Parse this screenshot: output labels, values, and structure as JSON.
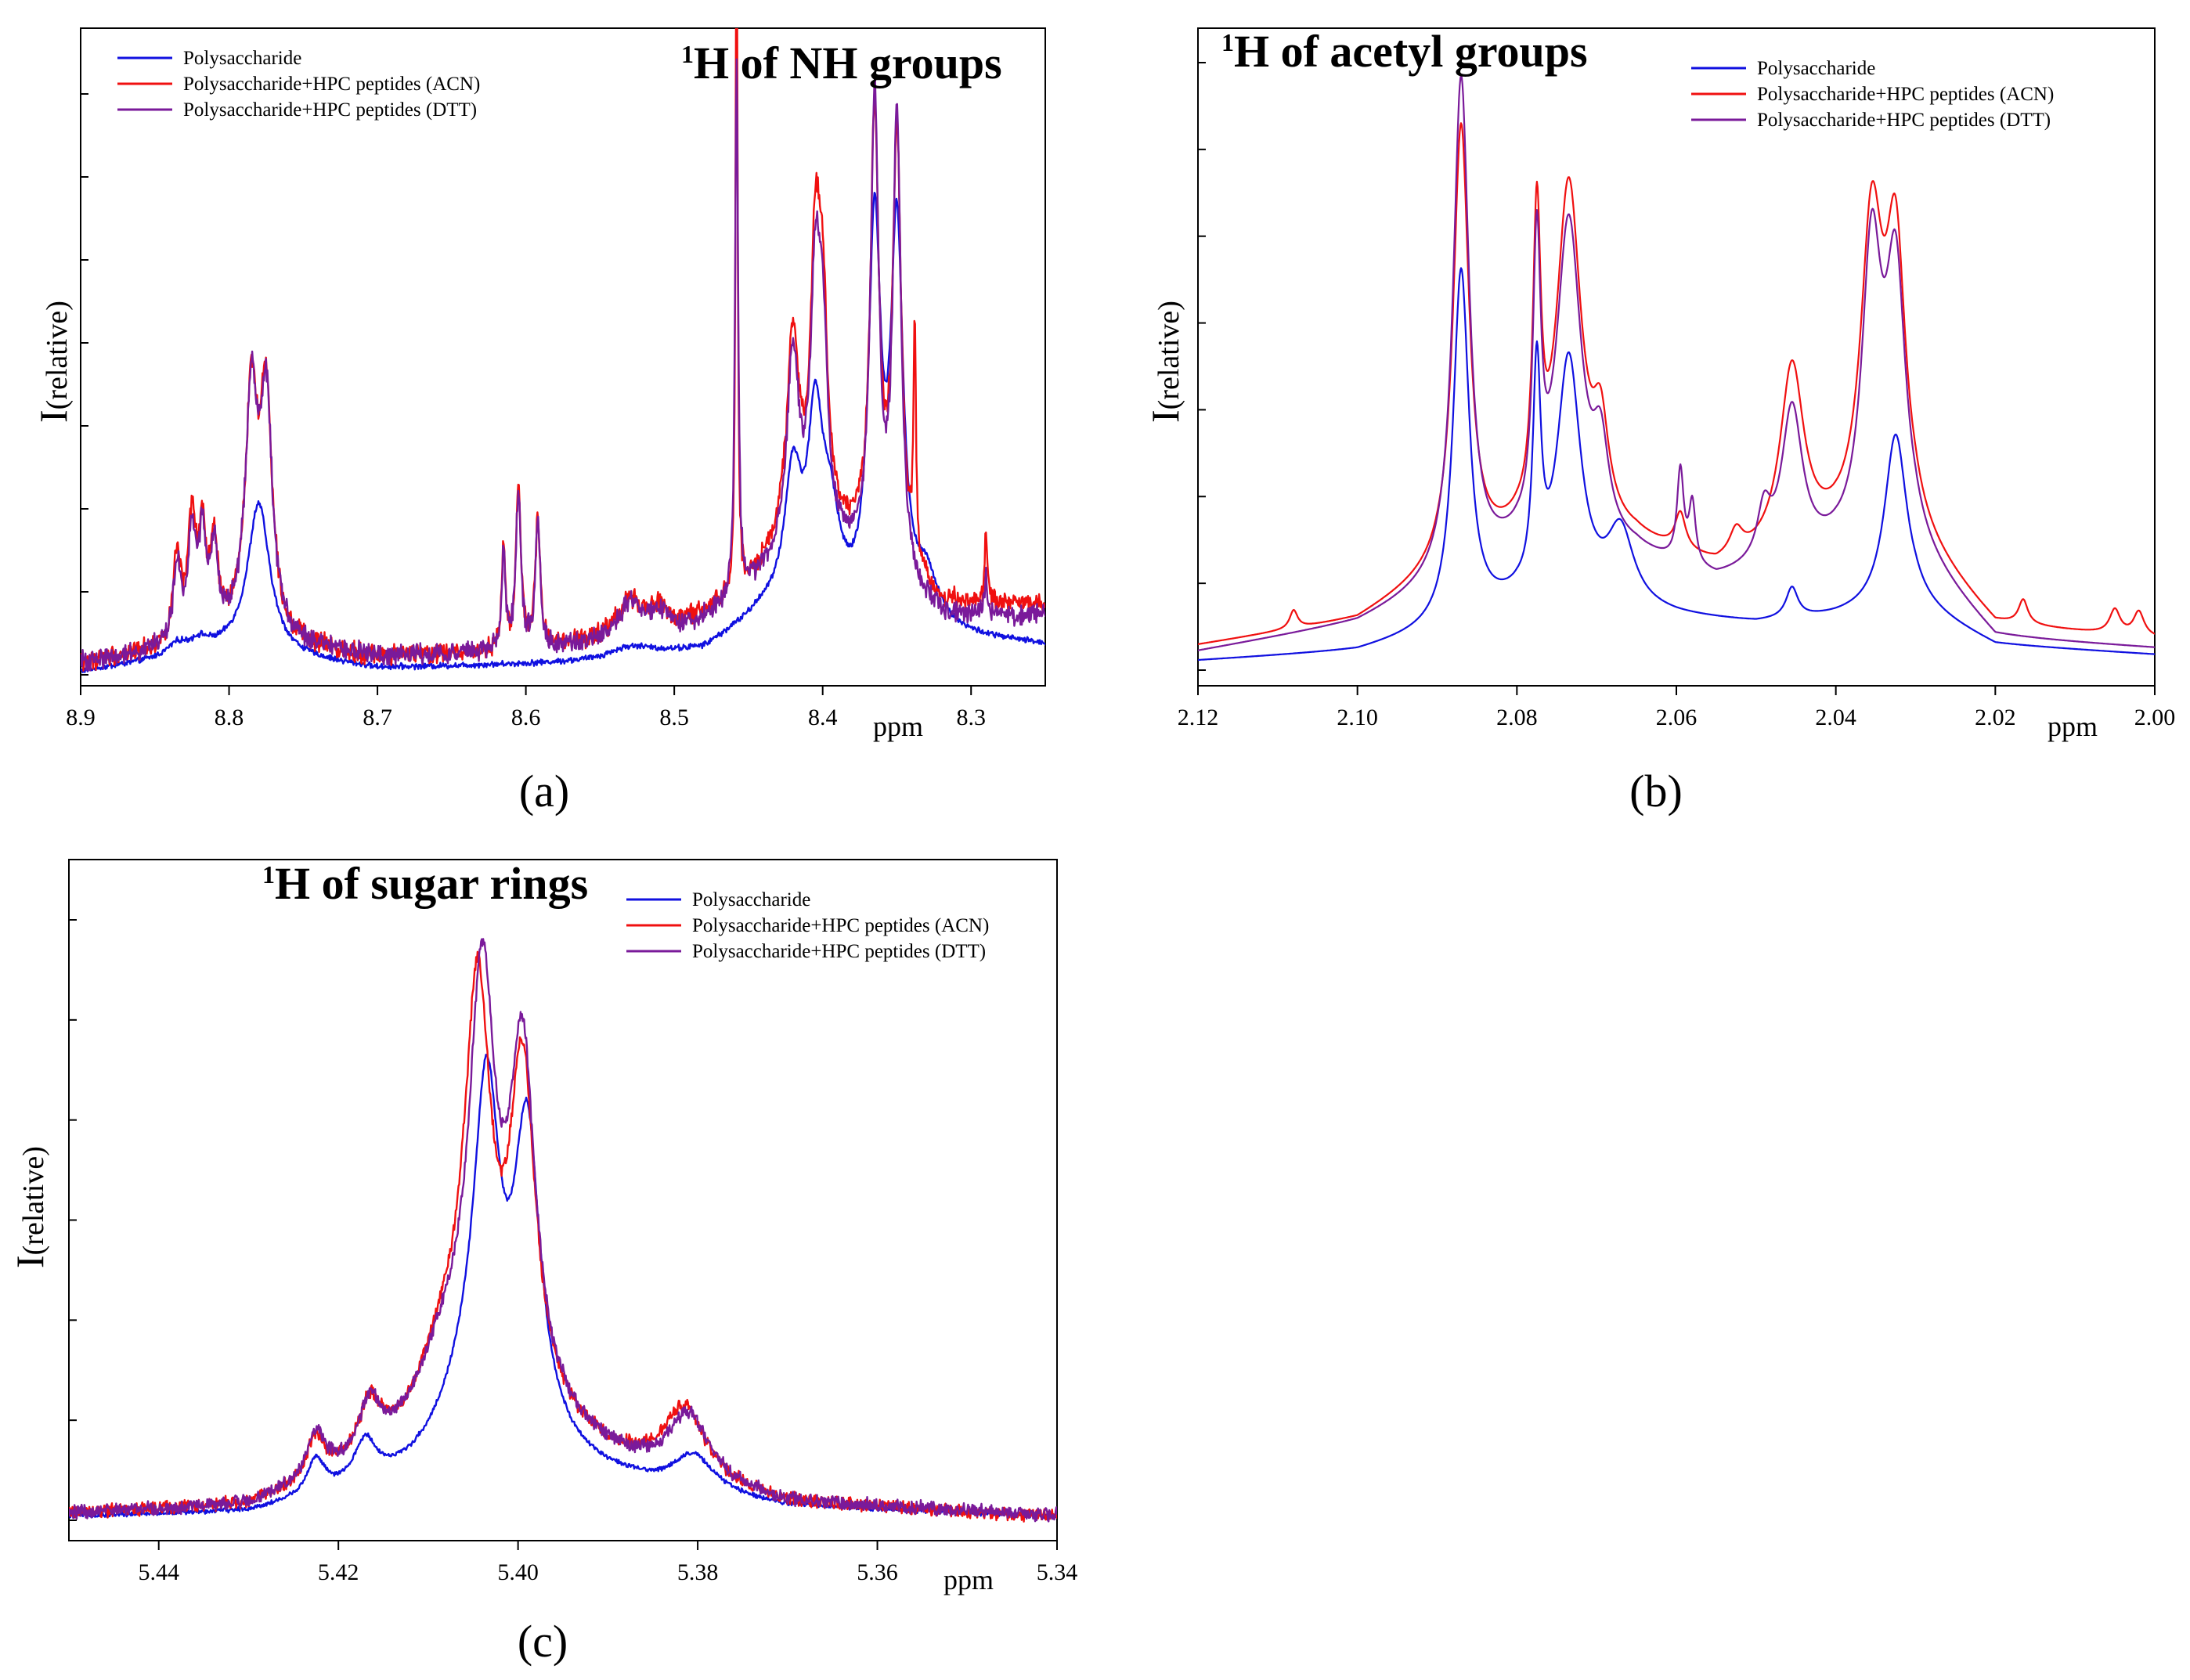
{
  "chart_data": [
    {
      "type": "line",
      "panel_letter": "(a)",
      "title_sup": "1",
      "title": "H of NH groups",
      "xlabel": "ppm",
      "ylabel_main": "I",
      "ylabel_sub": "(relative)",
      "x_reversed": true,
      "xlim": [
        8.9,
        8.25
      ],
      "ylim": [
        0,
        1
      ],
      "xticks": [
        "8.9",
        "8.8",
        "8.7",
        "8.6",
        "8.5",
        "8.4",
        "8.3"
      ],
      "legend_position": "top-left",
      "series": [
        {
          "name": "Polysaccharide",
          "color": "#1010e0",
          "noise": 0.004,
          "peaks": [
            [
              8.835,
              0.02,
              0.008
            ],
            [
              8.82,
              0.02,
              0.008
            ],
            [
              8.78,
              0.26,
              0.009
            ],
            [
              8.53,
              0.02,
              0.02
            ],
            [
              8.42,
              0.23,
              0.007
            ],
            [
              8.405,
              0.3,
              0.006
            ],
            [
              8.395,
              0.15,
              0.008
            ],
            [
              8.365,
              0.66,
              0.005
            ],
            [
              8.35,
              0.65,
              0.005
            ],
            [
              8.33,
              0.08,
              0.01
            ]
          ],
          "baseline": [
            [
              8.9,
              0.005
            ],
            [
              8.8,
              0.04
            ],
            [
              8.7,
              0.01
            ],
            [
              8.55,
              0.02
            ],
            [
              8.48,
              0.04
            ],
            [
              8.44,
              0.1
            ],
            [
              8.3,
              0.06
            ],
            [
              8.25,
              0.05
            ]
          ]
        },
        {
          "name": "Polysaccharide+HPC peptides (ACN)",
          "color": "#f01010",
          "noise": 0.014,
          "peaks": [
            [
              8.835,
              0.15,
              0.003
            ],
            [
              8.825,
              0.2,
              0.003
            ],
            [
              8.818,
              0.17,
              0.003
            ],
            [
              8.81,
              0.15,
              0.003
            ],
            [
              8.785,
              0.4,
              0.005
            ],
            [
              8.775,
              0.4,
              0.005
            ],
            [
              8.615,
              0.18,
              0.0015
            ],
            [
              8.605,
              0.28,
              0.002
            ],
            [
              8.592,
              0.22,
              0.002
            ],
            [
              8.53,
              0.06,
              0.01
            ],
            [
              8.51,
              0.04,
              0.01
            ],
            [
              8.458,
              1.25,
              0.0008
            ],
            [
              8.42,
              0.36,
              0.005
            ],
            [
              8.405,
              0.45,
              0.004
            ],
            [
              8.4,
              0.35,
              0.004
            ],
            [
              8.365,
              0.75,
              0.0035
            ],
            [
              8.35,
              0.74,
              0.0035
            ],
            [
              8.338,
              0.4,
              0.001
            ],
            [
              8.29,
              0.12,
              0.001
            ]
          ],
          "baseline": [
            [
              8.9,
              0.02
            ],
            [
              8.8,
              0.06
            ],
            [
              8.7,
              0.03
            ],
            [
              8.6,
              0.04
            ],
            [
              8.5,
              0.07
            ],
            [
              8.46,
              0.13
            ],
            [
              8.43,
              0.2
            ],
            [
              8.38,
              0.22
            ],
            [
              8.32,
              0.12
            ],
            [
              8.25,
              0.12
            ]
          ]
        },
        {
          "name": "Polysaccharide+HPC peptides (DTT)",
          "color": "#7a1a9a",
          "noise": 0.014,
          "peaks": [
            [
              8.835,
              0.13,
              0.003
            ],
            [
              8.825,
              0.18,
              0.003
            ],
            [
              8.818,
              0.16,
              0.003
            ],
            [
              8.81,
              0.14,
              0.003
            ],
            [
              8.785,
              0.4,
              0.005
            ],
            [
              8.775,
              0.39,
              0.005
            ],
            [
              8.615,
              0.17,
              0.0015
            ],
            [
              8.605,
              0.27,
              0.002
            ],
            [
              8.592,
              0.21,
              0.002
            ],
            [
              8.53,
              0.06,
              0.01
            ],
            [
              8.51,
              0.04,
              0.01
            ],
            [
              8.458,
              0.93,
              0.0012
            ],
            [
              8.42,
              0.35,
              0.005
            ],
            [
              8.405,
              0.42,
              0.004
            ],
            [
              8.4,
              0.32,
              0.004
            ],
            [
              8.365,
              0.8,
              0.0033
            ],
            [
              8.35,
              0.79,
              0.0033
            ],
            [
              8.29,
              0.08,
              0.001
            ]
          ],
          "baseline": [
            [
              8.9,
              0.02
            ],
            [
              8.8,
              0.06
            ],
            [
              8.7,
              0.03
            ],
            [
              8.6,
              0.04
            ],
            [
              8.5,
              0.06
            ],
            [
              8.46,
              0.12
            ],
            [
              8.43,
              0.18
            ],
            [
              8.38,
              0.2
            ],
            [
              8.32,
              0.1
            ],
            [
              8.25,
              0.1
            ]
          ]
        }
      ]
    },
    {
      "type": "line",
      "panel_letter": "(b)",
      "title_sup": "1",
      "title": "H of acetyl groups",
      "xlabel": "ppm",
      "ylabel_main": "I",
      "ylabel_sub": "(relative)",
      "x_reversed": true,
      "xlim": [
        2.12,
        2.0
      ],
      "ylim": [
        0,
        1
      ],
      "xticks": [
        "2.12",
        "2.10",
        "2.08",
        "2.06",
        "2.04",
        "2.02",
        "2.00"
      ],
      "legend_position": "top-right",
      "series": [
        {
          "name": "Polysaccharide",
          "color": "#1010e0",
          "noise": 0,
          "peaks": [
            [
              2.087,
              0.58,
              0.0012
            ],
            [
              2.0775,
              0.36,
              0.0006
            ],
            [
              2.0735,
              0.4,
              0.0018
            ],
            [
              2.067,
              0.12,
              0.002
            ],
            [
              2.0455,
              0.05,
              0.0009
            ],
            [
              2.0325,
              0.29,
              0.0017
            ]
          ],
          "baseline": [
            [
              2.12,
              0.015
            ],
            [
              2.1,
              0.03
            ],
            [
              2.09,
              0.06
            ],
            [
              2.08,
              0.1
            ],
            [
              2.07,
              0.1
            ],
            [
              2.06,
              0.085
            ],
            [
              2.05,
              0.075
            ],
            [
              2.04,
              0.085
            ],
            [
              2.03,
              0.1
            ],
            [
              2.02,
              0.04
            ],
            [
              2.0,
              0.025
            ]
          ]
        },
        {
          "name": "Polysaccharide+HPC peptides (ACN)",
          "color": "#f01010",
          "noise": 0,
          "peaks": [
            [
              2.108,
              0.03,
              0.0006
            ],
            [
              2.087,
              0.72,
              0.0012
            ],
            [
              2.0775,
              0.48,
              0.0006
            ],
            [
              2.0735,
              0.58,
              0.0019
            ],
            [
              2.0695,
              0.15,
              0.0012
            ],
            [
              2.0595,
              0.06,
              0.0008
            ],
            [
              2.0525,
              0.04,
              0.001
            ],
            [
              2.0455,
              0.3,
              0.0018
            ],
            [
              2.0355,
              0.5,
              0.0017
            ],
            [
              2.0325,
              0.45,
              0.0015
            ],
            [
              2.0165,
              0.04,
              0.0007
            ],
            [
              2.005,
              0.04,
              0.0008
            ],
            [
              2.002,
              0.04,
              0.0008
            ]
          ],
          "baseline": [
            [
              2.12,
              0.04
            ],
            [
              2.1,
              0.08
            ],
            [
              2.09,
              0.15
            ],
            [
              2.08,
              0.2
            ],
            [
              2.065,
              0.2
            ],
            [
              2.06,
              0.18
            ],
            [
              2.055,
              0.16
            ],
            [
              2.04,
              0.2
            ],
            [
              2.03,
              0.2
            ],
            [
              2.02,
              0.07
            ],
            [
              2.0,
              0.05
            ]
          ]
        },
        {
          "name": "Polysaccharide+HPC peptides (DTT)",
          "color": "#7a1a9a",
          "noise": 0,
          "peaks": [
            [
              2.087,
              0.82,
              0.0012
            ],
            [
              2.0775,
              0.46,
              0.0006
            ],
            [
              2.0735,
              0.54,
              0.0019
            ],
            [
              2.0695,
              0.14,
              0.0012
            ],
            [
              2.0595,
              0.15,
              0.0005
            ],
            [
              2.058,
              0.1,
              0.0005
            ],
            [
              2.0455,
              0.25,
              0.0016
            ],
            [
              2.049,
              0.08,
              0.001
            ],
            [
              2.0355,
              0.48,
              0.0015
            ],
            [
              2.0325,
              0.44,
              0.0015
            ]
          ],
          "baseline": [
            [
              2.12,
              0.03
            ],
            [
              2.1,
              0.075
            ],
            [
              2.09,
              0.13
            ],
            [
              2.08,
              0.18
            ],
            [
              2.065,
              0.18
            ],
            [
              2.06,
              0.16
            ],
            [
              2.055,
              0.14
            ],
            [
              2.04,
              0.18
            ],
            [
              2.03,
              0.18
            ],
            [
              2.02,
              0.05
            ],
            [
              2.0,
              0.035
            ]
          ]
        }
      ]
    },
    {
      "type": "line",
      "panel_letter": "(c)",
      "title_sup": "1",
      "title": "H of sugar rings",
      "xlabel": "ppm",
      "ylabel_main": "I",
      "ylabel_sub": "(relative)",
      "x_reversed": true,
      "xlim": [
        5.45,
        5.34
      ],
      "ylim": [
        0,
        1
      ],
      "xticks": [
        "5.44",
        "5.42",
        "5.40",
        "5.38",
        "5.36",
        "5.34"
      ],
      "legend_position": "top-right",
      "series": [
        {
          "name": "Polysaccharide",
          "color": "#1010e0",
          "noise": 0.003,
          "peaks": [
            [
              5.4035,
              0.56,
              0.0018
            ],
            [
              5.399,
              0.52,
              0.0018
            ],
            [
              5.406,
              0.1,
              0.004
            ],
            [
              5.4225,
              0.06,
              0.0012
            ],
            [
              5.417,
              0.07,
              0.0015
            ],
            [
              5.3805,
              0.06,
              0.0028
            ]
          ],
          "baseline": [
            [
              5.45,
              0.005
            ],
            [
              5.43,
              0.01
            ],
            [
              5.41,
              0.06
            ],
            [
              5.395,
              0.08
            ],
            [
              5.385,
              0.05
            ],
            [
              5.37,
              0.02
            ],
            [
              5.34,
              0.005
            ]
          ]
        },
        {
          "name": "Polysaccharide+HPC peptides (ACN)",
          "color": "#f01010",
          "noise": 0.009,
          "peaks": [
            [
              5.4045,
              0.68,
              0.0018
            ],
            [
              5.3995,
              0.58,
              0.0018
            ],
            [
              5.408,
              0.14,
              0.004
            ],
            [
              5.4225,
              0.07,
              0.0012
            ],
            [
              5.4165,
              0.09,
              0.0015
            ],
            [
              5.3815,
              0.12,
              0.0028
            ]
          ],
          "baseline": [
            [
              5.45,
              0.01
            ],
            [
              5.43,
              0.02
            ],
            [
              5.41,
              0.1
            ],
            [
              5.395,
              0.12
            ],
            [
              5.385,
              0.07
            ],
            [
              5.37,
              0.025
            ],
            [
              5.34,
              0.005
            ]
          ]
        },
        {
          "name": "Polysaccharide+HPC peptides (DTT)",
          "color": "#7a1a9a",
          "noise": 0.009,
          "peaks": [
            [
              5.404,
              0.7,
              0.0018
            ],
            [
              5.3995,
              0.6,
              0.0018
            ],
            [
              5.408,
              0.14,
              0.004
            ],
            [
              5.4225,
              0.08,
              0.0012
            ],
            [
              5.4165,
              0.09,
              0.0015
            ],
            [
              5.381,
              0.11,
              0.0028
            ]
          ],
          "baseline": [
            [
              5.45,
              0.01
            ],
            [
              5.43,
              0.02
            ],
            [
              5.41,
              0.1
            ],
            [
              5.395,
              0.12
            ],
            [
              5.385,
              0.07
            ],
            [
              5.37,
              0.025
            ],
            [
              5.34,
              0.008
            ]
          ]
        }
      ]
    }
  ]
}
